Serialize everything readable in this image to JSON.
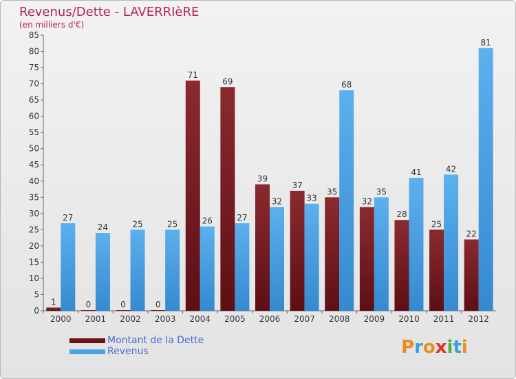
{
  "title": "Revenus/Dette - LAVERRIèRE",
  "subtitle": "(en milliers d'€)",
  "logo": {
    "text": "Proxiti",
    "letters": [
      {
        "ch": "P",
        "color": "#f08a1c"
      },
      {
        "ch": "r",
        "color": "#3aa0e0"
      },
      {
        "ch": "o",
        "color": "#f08a1c"
      },
      {
        "ch": "x",
        "color": "#e0312c"
      },
      {
        "ch": "i",
        "color": "#49b33c"
      },
      {
        "ch": "t",
        "color": "#3aa0e0"
      },
      {
        "ch": "i",
        "color": "#f08a1c"
      }
    ]
  },
  "chart_data": {
    "type": "bar",
    "title": "Revenus/Dette - LAVERRIèRE",
    "subtitle": "(en milliers d'€)",
    "xlabel": "",
    "ylabel": "",
    "categories": [
      "2000",
      "2001",
      "2002",
      "2003",
      "2004",
      "2005",
      "2006",
      "2007",
      "2008",
      "2009",
      "2010",
      "2011",
      "2012"
    ],
    "ylim": [
      0,
      85
    ],
    "yticks": [
      0,
      5,
      10,
      15,
      20,
      25,
      30,
      35,
      40,
      45,
      50,
      55,
      60,
      65,
      70,
      75,
      80,
      85
    ],
    "grid": false,
    "legend": "bottom-left",
    "series": [
      {
        "name": "Montant de la Dette",
        "color": "#7a1a22",
        "values": [
          1,
          0,
          0,
          0,
          71,
          69,
          39,
          37,
          35,
          32,
          28,
          25,
          22
        ]
      },
      {
        "name": "Revenus",
        "color": "#4aa3e6",
        "values": [
          27,
          24,
          25,
          25,
          26,
          27,
          32,
          33,
          68,
          35,
          41,
          42,
          81
        ]
      }
    ]
  }
}
